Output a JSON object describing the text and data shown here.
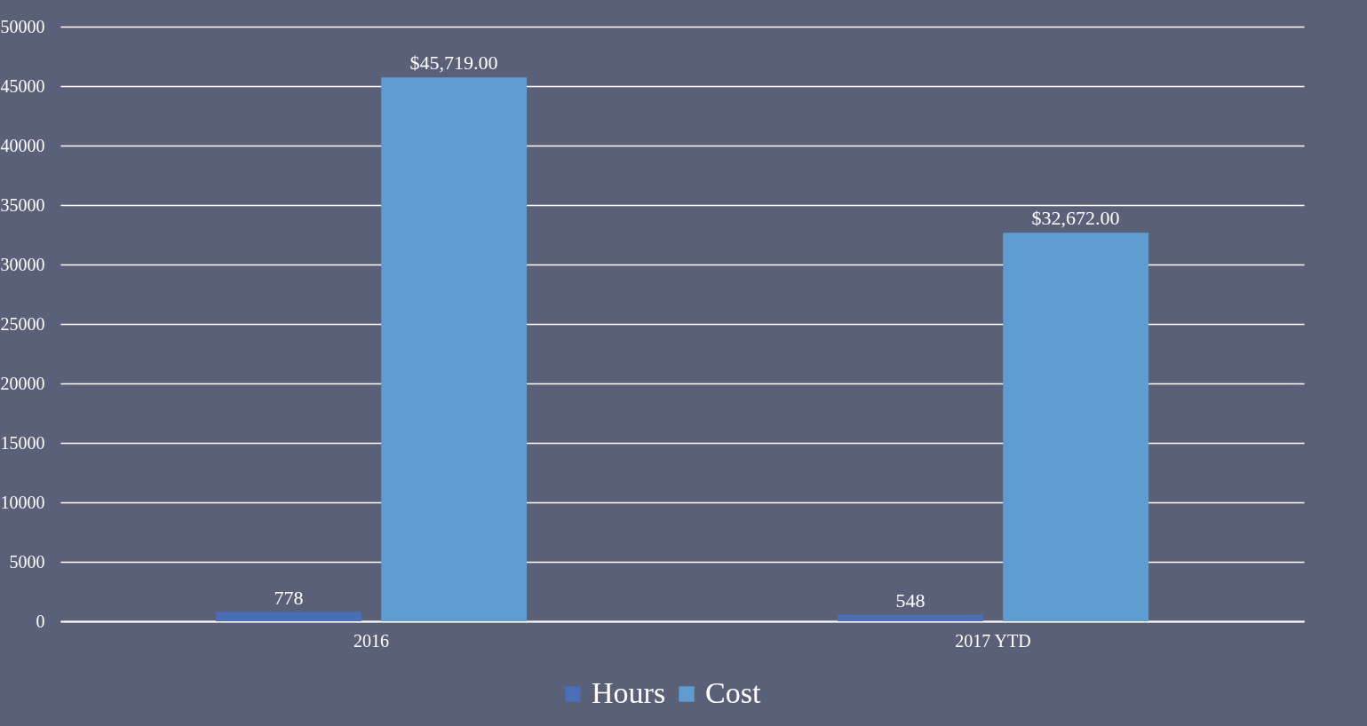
{
  "chart_data": {
    "type": "bar",
    "categories": [
      "2016",
      "2017 YTD"
    ],
    "series": [
      {
        "name": "Hours",
        "color": "#4a6fb8",
        "values": [
          778,
          548
        ],
        "value_labels": [
          "778",
          "548"
        ]
      },
      {
        "name": "Cost",
        "color": "#5f9dd1",
        "values": [
          45719,
          32672
        ],
        "value_labels": [
          "$45,719.00",
          "$32,672.00"
        ]
      }
    ],
    "ylim": [
      0,
      50000
    ],
    "yticks": [
      0,
      5000,
      10000,
      15000,
      20000,
      25000,
      30000,
      35000,
      40000,
      45000,
      50000
    ],
    "grid": "y",
    "legend": "bottom"
  }
}
